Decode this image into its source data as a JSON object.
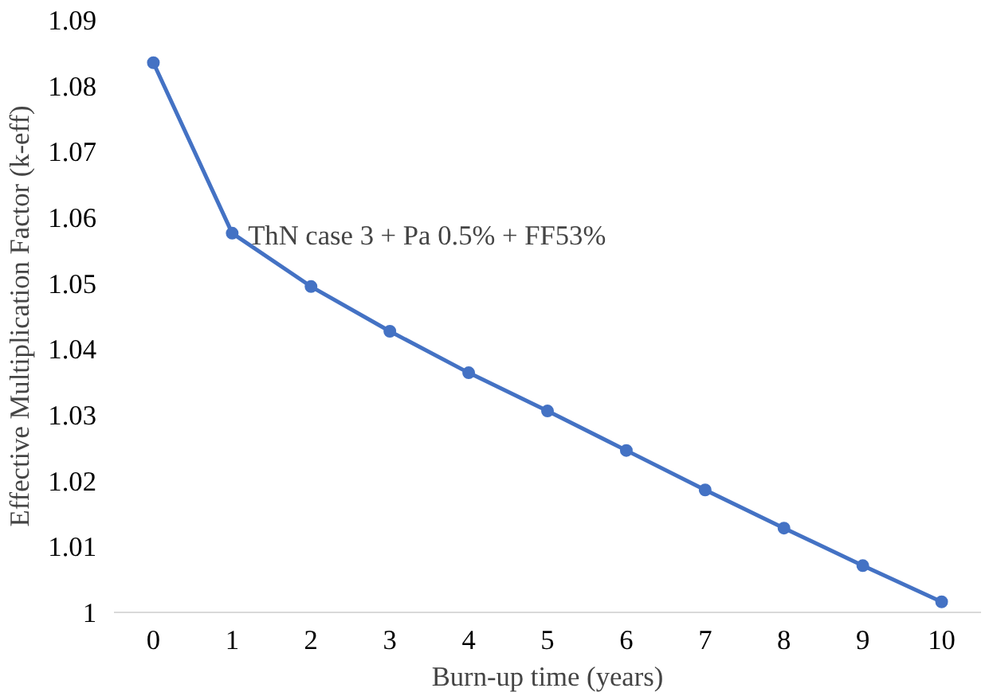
{
  "chart_data": {
    "type": "line",
    "xlabel": "Burn-up time (years)",
    "ylabel": "Effective Multiplication Factor (k-eff)",
    "categories": [
      "0",
      "1",
      "2",
      "3",
      "4",
      "5",
      "6",
      "7",
      "8",
      "9",
      "10"
    ],
    "series": [
      {
        "color": "#4472c4",
        "values": [
          1.0835,
          1.0576,
          1.0495,
          1.0427,
          1.0364,
          1.0306,
          1.0246,
          1.0186,
          1.0128,
          1.0071,
          1.0016
        ]
      }
    ],
    "ylim": [
      1,
      1.09
    ],
    "yticks": [
      1,
      1.01,
      1.02,
      1.03,
      1.04,
      1.05,
      1.06,
      1.07,
      1.08,
      1.09
    ],
    "annotations": [
      "ThN case 3 + Pa 0.5% + FF53%"
    ],
    "grid": false,
    "marker": "circle",
    "line_style": "solid"
  }
}
